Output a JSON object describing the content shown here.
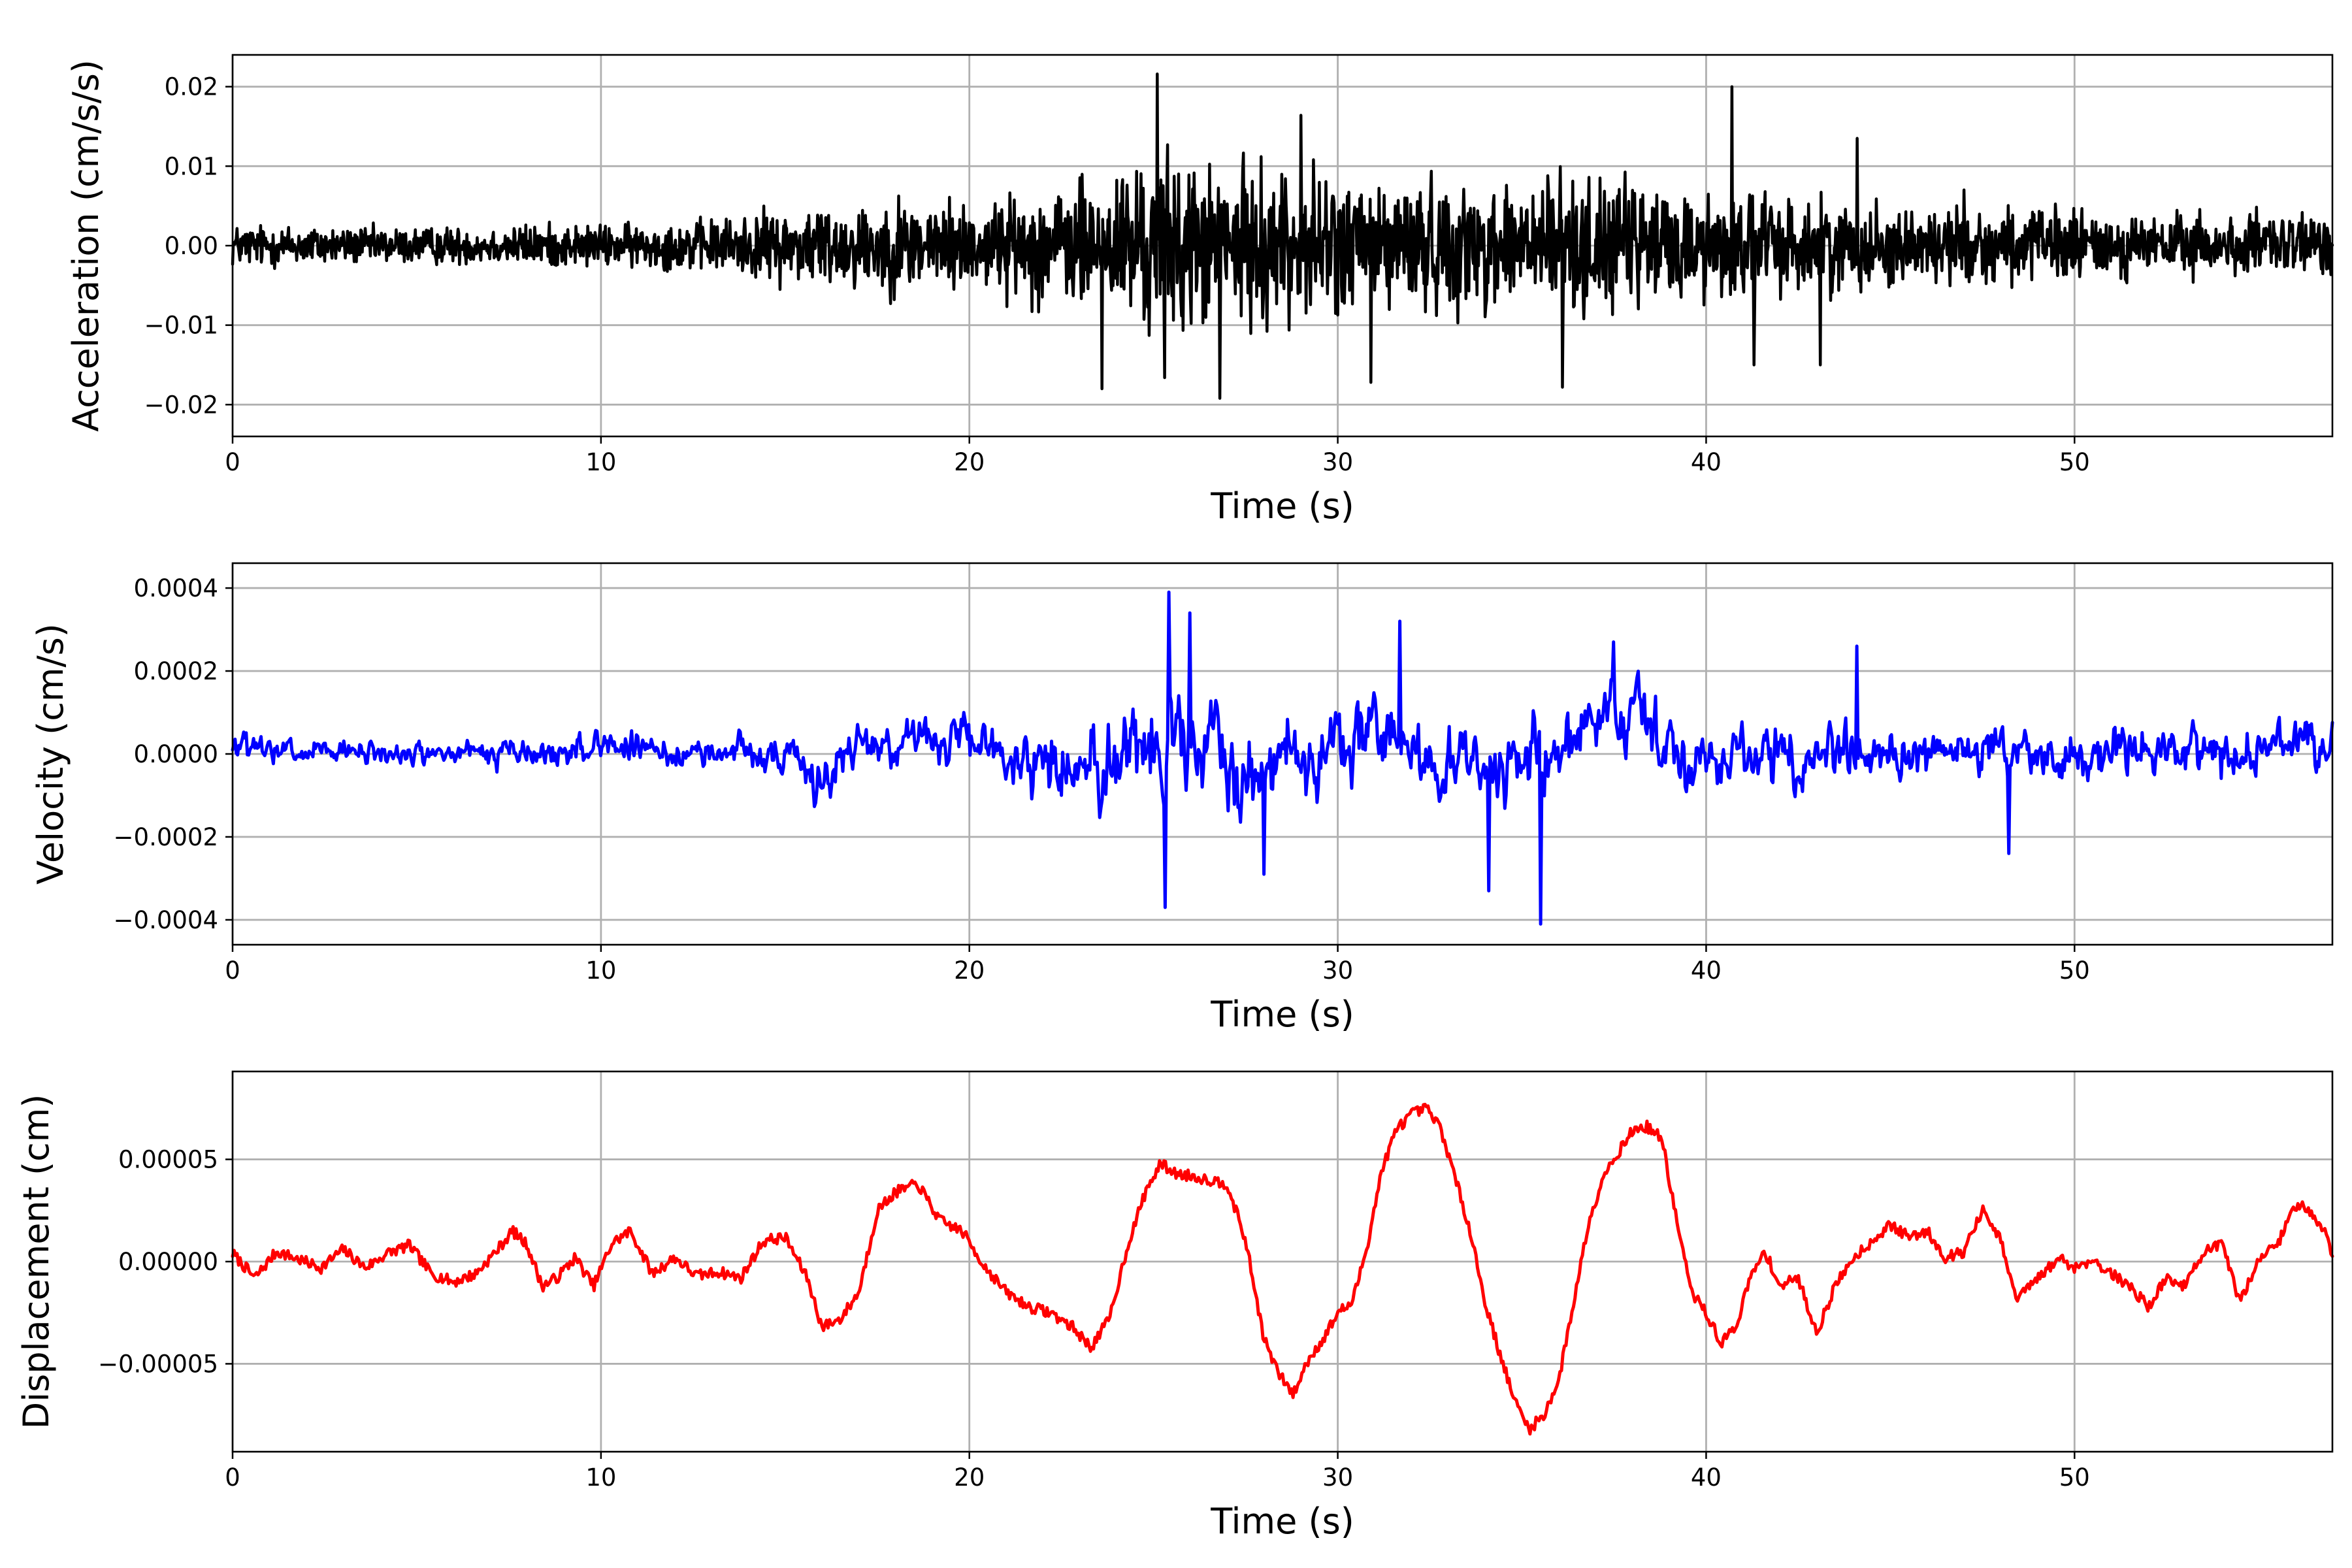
{
  "chart_data": [
    {
      "type": "line",
      "xlabel": "Time (s)",
      "ylabel": "Acceleration (cm/s/s)",
      "xlim": [
        0,
        57
      ],
      "ylim": [
        -0.024,
        0.024
      ],
      "xticks": [
        0,
        10,
        20,
        30,
        40,
        50
      ],
      "xtick_labels": [
        "0",
        "10",
        "20",
        "30",
        "40",
        "50"
      ],
      "yticks": [
        -0.02,
        -0.01,
        0.0,
        0.01,
        0.02
      ],
      "ytick_labels": [
        "−0.02",
        "−0.01",
        "0.00",
        "0.01",
        "0.02"
      ],
      "grid": true,
      "color": "#000000",
      "x": [
        0,
        1,
        2,
        3,
        4,
        5,
        6,
        7,
        8,
        9,
        10,
        11,
        12,
        13,
        14,
        15,
        16,
        17,
        18,
        19,
        20,
        21,
        22,
        23,
        24,
        25,
        26,
        27,
        28,
        29,
        30,
        31,
        32,
        33,
        34,
        35,
        36,
        37,
        38,
        39,
        40,
        41,
        42,
        43,
        44,
        45,
        46,
        47,
        48,
        49,
        50,
        51,
        52,
        53,
        54,
        55,
        56,
        57
      ],
      "envelope": [
        0.004,
        0.004,
        0.004,
        0.0035,
        0.0035,
        0.0035,
        0.0035,
        0.0035,
        0.004,
        0.004,
        0.004,
        0.004,
        0.0045,
        0.005,
        0.006,
        0.007,
        0.008,
        0.008,
        0.009,
        0.009,
        0.008,
        0.009,
        0.011,
        0.012,
        0.014,
        0.017,
        0.016,
        0.014,
        0.015,
        0.014,
        0.013,
        0.013,
        0.012,
        0.012,
        0.012,
        0.013,
        0.014,
        0.012,
        0.012,
        0.011,
        0.01,
        0.011,
        0.009,
        0.009,
        0.008,
        0.008,
        0.007,
        0.007,
        0.007,
        0.007,
        0.007,
        0.006,
        0.006,
        0.006,
        0.006,
        0.006,
        0.006,
        0.006
      ],
      "peaks": [
        [
          25.1,
          0.0216
        ],
        [
          25.3,
          -0.0166
        ],
        [
          26.8,
          -0.0192
        ],
        [
          23.6,
          -0.018
        ],
        [
          40.7,
          0.02
        ],
        [
          36.1,
          -0.0178
        ],
        [
          29.0,
          0.0164
        ],
        [
          30.9,
          -0.0172
        ],
        [
          44.1,
          0.0135
        ],
        [
          43.1,
          -0.015
        ],
        [
          47.0,
          0.007
        ],
        [
          41.3,
          -0.015
        ]
      ]
    },
    {
      "type": "line",
      "xlabel": "Time (s)",
      "ylabel": "Velocity (cm/s)",
      "xlim": [
        0,
        57
      ],
      "ylim": [
        -0.00046,
        0.00046
      ],
      "xticks": [
        0,
        10,
        20,
        30,
        40,
        50
      ],
      "xtick_labels": [
        "0",
        "10",
        "20",
        "30",
        "40",
        "50"
      ],
      "yticks": [
        -0.0004,
        -0.0002,
        0.0,
        0.0002,
        0.0004
      ],
      "ytick_labels": [
        "−0.0004",
        "−0.0002",
        "0.0000",
        "0.0002",
        "0.0004"
      ],
      "grid": true,
      "color": "#0000ff",
      "x": [
        0,
        1,
        2,
        3,
        4,
        5,
        6,
        7,
        8,
        9,
        10,
        11,
        12,
        13,
        14,
        15,
        16,
        17,
        18,
        19,
        20,
        21,
        22,
        23,
        24,
        25,
        26,
        27,
        28,
        29,
        30,
        31,
        32,
        33,
        34,
        35,
        36,
        37,
        38,
        39,
        40,
        41,
        42,
        43,
        44,
        45,
        46,
        47,
        48,
        49,
        50,
        51,
        52,
        53,
        54,
        55,
        56,
        57
      ],
      "envelope": [
        8e-05,
        7e-05,
        7e-05,
        6e-05,
        6e-05,
        6e-05,
        6e-05,
        7e-05,
        8e-05,
        8e-05,
        8e-05,
        7e-05,
        6e-05,
        7e-05,
        8e-05,
        0.0001,
        0.00012,
        0.00011,
        0.00012,
        0.00012,
        0.00012,
        0.00013,
        0.00015,
        0.00019,
        0.00024,
        0.00028,
        0.00025,
        0.00022,
        0.00022,
        0.0002,
        0.00019,
        0.00019,
        0.00018,
        0.00018,
        0.00019,
        0.0002,
        0.00022,
        0.0002,
        0.00019,
        0.00018,
        0.00016,
        0.00016,
        0.00015,
        0.00015,
        0.00014,
        0.00013,
        0.00013,
        0.00013,
        0.00013,
        0.00012,
        0.00012,
        0.00012,
        0.00012,
        0.00012,
        0.00012,
        0.00012,
        0.00012,
        0.00012
      ],
      "offset": [
        2e-05,
        0.0,
        0.0,
        0.0,
        0.0,
        0.0,
        0.0,
        0.0,
        0.0,
        0.0,
        3e-05,
        1e-05,
        0.0,
        0.0,
        2e-05,
        -2e-05,
        -6e-05,
        2e-05,
        4e-05,
        3e-05,
        2e-05,
        0.0,
        -2e-05,
        -3e-05,
        0.0,
        3e-05,
        0.0,
        -3e-05,
        -1e-05,
        0.0,
        1e-05,
        4e-05,
        2e-05,
        -2e-05,
        -4e-05,
        -2e-05,
        2e-05,
        5e-05,
        6e-05,
        2e-05,
        0.0,
        0.0,
        0.0,
        0.0,
        1e-05,
        0.0,
        0.0,
        0.0,
        0.0,
        0.0,
        0.0,
        0.0,
        0.0,
        0.0,
        0.0,
        0.0,
        3e-05,
        2e-05
      ],
      "peaks": [
        [
          25.4,
          0.00039
        ],
        [
          25.3,
          -0.00037
        ],
        [
          35.5,
          -0.00041
        ],
        [
          31.7,
          0.00032
        ],
        [
          44.1,
          0.00026
        ],
        [
          26.0,
          0.00034
        ],
        [
          28.0,
          -0.00029
        ],
        [
          48.2,
          -0.00024
        ],
        [
          34.1,
          -0.00033
        ],
        [
          37.5,
          0.00027
        ]
      ]
    },
    {
      "type": "line",
      "xlabel": "Time (s)",
      "ylabel": "Displacement (cm)",
      "xlim": [
        0,
        57
      ],
      "ylim": [
        -9.3e-05,
        9.3e-05
      ],
      "xticks": [
        0,
        10,
        20,
        30,
        40,
        50
      ],
      "xtick_labels": [
        "0",
        "10",
        "20",
        "30",
        "40",
        "50"
      ],
      "yticks": [
        -5e-05,
        0.0,
        5e-05
      ],
      "ytick_labels": [
        "−0.00005",
        "0.00000",
        "0.00005"
      ],
      "grid": true,
      "color": "#ff0000",
      "x": [
        0,
        0.6,
        1.2,
        1.8,
        2.4,
        3.0,
        3.6,
        4.2,
        4.8,
        5.4,
        6.0,
        6.6,
        7.2,
        7.6,
        8.0,
        8.4,
        8.8,
        9.3,
        9.8,
        10.3,
        10.8,
        11.4,
        12.0,
        12.6,
        13.2,
        13.8,
        14.4,
        15.0,
        15.6,
        16.0,
        16.5,
        17.0,
        17.5,
        18.0,
        18.6,
        19.2,
        19.8,
        20.4,
        21.0,
        21.6,
        22.2,
        22.8,
        23.3,
        23.8,
        24.3,
        24.8,
        25.2,
        25.6,
        26.0,
        26.5,
        27.0,
        27.5,
        28.0,
        28.4,
        28.8,
        29.2,
        29.6,
        30.0,
        30.4,
        30.8,
        31.2,
        31.6,
        32.0,
        32.4,
        32.8,
        33.2,
        33.6,
        34.0,
        34.4,
        34.8,
        35.2,
        35.6,
        36.0,
        36.4,
        36.8,
        37.2,
        37.6,
        38.0,
        38.4,
        38.8,
        39.2,
        39.6,
        40.0,
        40.4,
        40.8,
        41.2,
        41.6,
        42.0,
        42.5,
        43.0,
        43.5,
        44.0,
        44.5,
        45.0,
        45.5,
        46.0,
        46.5,
        47.0,
        47.5,
        48.0,
        48.4,
        48.8,
        49.2,
        49.6,
        50.0,
        50.5,
        51.0,
        51.5,
        52.0,
        52.5,
        53.0,
        53.5,
        54.0,
        54.5,
        55.0,
        55.5,
        56.0,
        56.4,
        56.8,
        57.0
      ],
      "values": [
        4e-06,
        -8e-06,
        5e-06,
        1e-06,
        -3e-06,
        6e-06,
        -3e-06,
        4e-06,
        8e-06,
        -6e-06,
        -1e-05,
        -6e-06,
        6e-06,
        1.5e-05,
        8e-06,
        -1.2e-05,
        -8e-06,
        2e-06,
        -1.2e-05,
        9e-06,
        1.5e-05,
        -6e-06,
        2e-06,
        -7e-06,
        -5e-06,
        -8e-06,
        1e-05,
        1.2e-05,
        -8e-06,
        -3.2e-05,
        -2.8e-05,
        -1.5e-05,
        2.5e-05,
        3.4e-05,
        3.8e-05,
        2e-05,
        1.5e-05,
        -2e-06,
        -1.5e-05,
        -2.2e-05,
        -2.5e-05,
        -3.2e-05,
        -4.2e-05,
        -2.8e-05,
        8e-06,
        3.5e-05,
        4.8e-05,
        4.3e-05,
        4.2e-05,
        4e-05,
        3.8e-05,
        1e-05,
        -3.8e-05,
        -5.5e-05,
        -6.5e-05,
        -4.8e-05,
        -3.8e-05,
        -2.5e-05,
        -2e-05,
        8e-06,
        4.5e-05,
        6.5e-05,
        7.2e-05,
        7.5e-05,
        6.5e-05,
        4e-05,
        1.5e-05,
        -2e-05,
        -4.5e-05,
        -6.8e-05,
        -8.2e-05,
        -7.5e-05,
        -5.8e-05,
        -2e-05,
        1.8e-05,
        4.2e-05,
        5.3e-05,
        6.4e-05,
        6.6e-05,
        6e-05,
        2e-05,
        -1.5e-05,
        -2.5e-05,
        -4e-05,
        -3.2e-05,
        -8e-06,
        5e-06,
        -1.2e-05,
        -8e-06,
        -3.5e-05,
        -1.2e-05,
        2e-06,
        1e-05,
        1.8e-05,
        1.2e-05,
        1.5e-05,
        2e-06,
        5e-06,
        2.5e-05,
        1e-05,
        -1.8e-05,
        -1.2e-05,
        -5e-06,
        2e-06,
        -3e-06,
        1e-06,
        -6e-06,
        -1.2e-05,
        -2.2e-05,
        -8e-06,
        -1.2e-05,
        5e-06,
        8e-06,
        -2e-05,
        2e-06,
        8e-06,
        2.8e-05,
        2.5e-05,
        1.5e-05,
        2e-06
      ]
    }
  ]
}
